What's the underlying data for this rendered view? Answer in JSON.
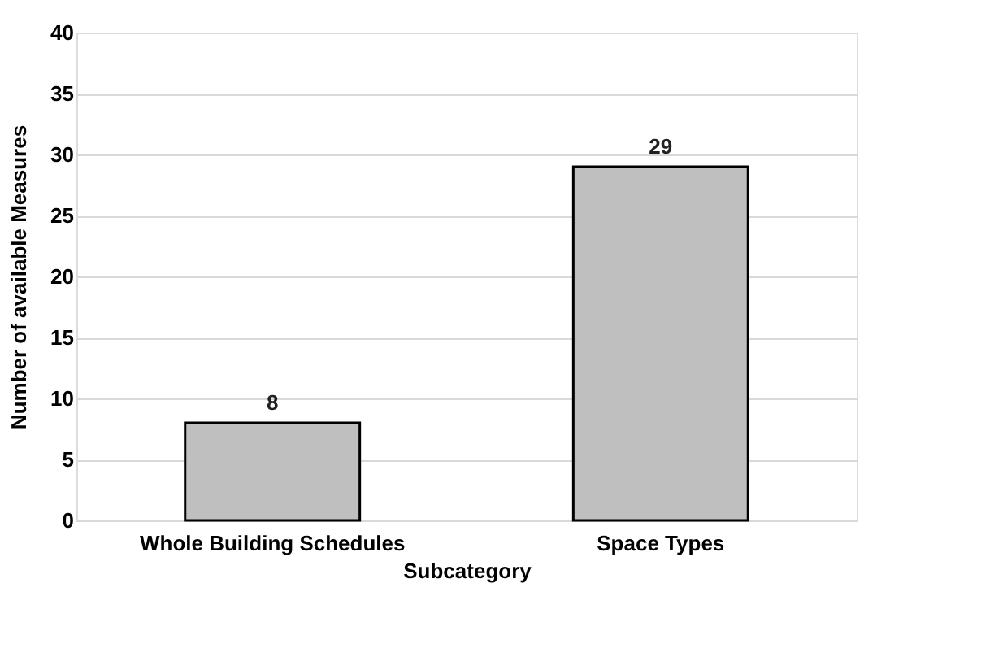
{
  "chart_data": {
    "type": "bar",
    "xlabel": "Subcategory",
    "ylabel": "Number of available Measures",
    "categories": [
      "Whole Building Schedules",
      "Space Types"
    ],
    "values": [
      8,
      29
    ],
    "color": "#bfbfbf",
    "ylim": [
      0,
      40
    ],
    "yticks": [
      0,
      5,
      10,
      15,
      20,
      25,
      30,
      35,
      40
    ],
    "grid": "y",
    "data_labels": true
  }
}
